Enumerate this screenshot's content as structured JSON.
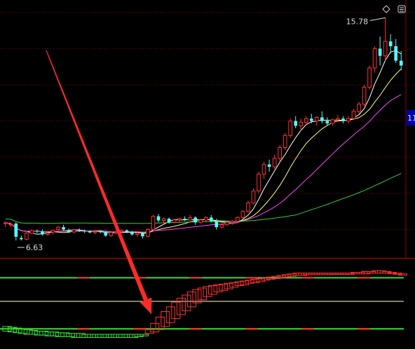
{
  "colors": {
    "background": "#000000",
    "grid": "#8a0000",
    "up": "#ff3030",
    "down": "#54fcfc",
    "ma5": "#ffffff",
    "ma10": "#ffff66",
    "ma20": "#ff40ff",
    "ma60": "#33cc33",
    "arrow": "#ff2a2a",
    "ind_red": "#ff3030",
    "ind_green": "#33dd33",
    "ind_level": "#ffffcc"
  },
  "icons": {
    "corner_buttons": [
      "diamond-icon",
      "square-icon"
    ]
  },
  "chart_data": [
    {
      "type": "candlestick",
      "title": "",
      "annotations": {
        "high_label": "15.78",
        "low_label": "6.63",
        "axis_edge_label": "11"
      },
      "high_value": 15.78,
      "low_value": 6.63,
      "ylim": [
        6.0,
        16.4
      ],
      "grid_levels": [
        7.0,
        8.5,
        10.0,
        11.5,
        13.0,
        14.5,
        16.0
      ],
      "candles": [
        [
          7.25,
          7.35,
          7.1,
          7.28
        ],
        [
          7.2,
          7.3,
          7.1,
          7.22
        ],
        [
          7.25,
          7.3,
          6.55,
          6.7
        ],
        [
          6.65,
          6.75,
          6.55,
          6.6
        ],
        [
          6.6,
          6.9,
          6.55,
          6.85
        ],
        [
          6.85,
          7.0,
          6.8,
          6.95
        ],
        [
          6.95,
          7.0,
          6.85,
          6.92
        ],
        [
          6.92,
          7.0,
          6.75,
          6.8
        ],
        [
          6.8,
          6.9,
          6.75,
          6.85
        ],
        [
          6.9,
          7.0,
          6.8,
          6.97
        ],
        [
          7.0,
          7.15,
          6.95,
          7.1
        ],
        [
          7.1,
          7.2,
          6.95,
          7.0
        ],
        [
          6.95,
          7.05,
          6.85,
          6.9
        ],
        [
          6.9,
          7.0,
          6.85,
          6.98
        ],
        [
          6.98,
          7.05,
          6.9,
          6.95
        ],
        [
          6.95,
          7.0,
          6.85,
          6.93
        ],
        [
          6.93,
          6.97,
          6.85,
          6.88
        ],
        [
          6.88,
          6.95,
          6.8,
          6.92
        ],
        [
          6.92,
          6.98,
          6.85,
          6.9
        ],
        [
          6.9,
          6.95,
          6.7,
          6.75
        ],
        [
          6.75,
          6.9,
          6.7,
          6.88
        ],
        [
          6.88,
          6.95,
          6.8,
          6.92
        ],
        [
          6.92,
          7.0,
          6.85,
          6.97
        ],
        [
          6.97,
          7.0,
          6.85,
          6.9
        ],
        [
          6.9,
          6.95,
          6.75,
          6.8
        ],
        [
          6.8,
          6.9,
          6.7,
          6.85
        ],
        [
          6.85,
          6.9,
          6.63,
          6.72
        ],
        [
          6.72,
          7.05,
          6.68,
          7.0
        ],
        [
          7.0,
          7.6,
          6.95,
          7.55
        ],
        [
          7.55,
          7.65,
          7.3,
          7.38
        ],
        [
          7.38,
          7.5,
          7.2,
          7.45
        ],
        [
          7.45,
          7.5,
          7.25,
          7.3
        ],
        [
          7.3,
          7.45,
          7.25,
          7.4
        ],
        [
          7.4,
          7.5,
          7.3,
          7.45
        ],
        [
          7.45,
          7.55,
          7.35,
          7.4
        ],
        [
          7.4,
          7.6,
          7.35,
          7.5
        ],
        [
          7.5,
          7.55,
          7.2,
          7.3
        ],
        [
          7.3,
          7.45,
          7.25,
          7.4
        ],
        [
          7.4,
          7.55,
          7.3,
          7.5
        ],
        [
          7.5,
          7.6,
          7.3,
          7.35
        ],
        [
          7.35,
          7.45,
          7.0,
          7.1
        ],
        [
          7.1,
          7.25,
          7.05,
          7.2
        ],
        [
          7.2,
          7.35,
          7.15,
          7.3
        ],
        [
          7.3,
          7.4,
          7.2,
          7.35
        ],
        [
          7.35,
          7.55,
          7.3,
          7.5
        ],
        [
          7.5,
          7.8,
          7.45,
          7.75
        ],
        [
          7.75,
          8.2,
          7.7,
          8.1
        ],
        [
          8.1,
          8.7,
          8.05,
          8.6
        ],
        [
          8.6,
          9.4,
          8.5,
          9.3
        ],
        [
          9.3,
          9.8,
          9.1,
          9.7
        ],
        [
          9.7,
          9.9,
          9.4,
          9.6
        ],
        [
          9.6,
          10.1,
          9.5,
          9.95
        ],
        [
          9.95,
          10.5,
          9.8,
          10.4
        ],
        [
          10.4,
          11.0,
          10.3,
          10.9
        ],
        [
          10.9,
          11.6,
          10.8,
          11.5
        ],
        [
          11.5,
          11.7,
          11.2,
          11.3
        ],
        [
          11.3,
          11.6,
          11.1,
          11.45
        ],
        [
          11.45,
          11.7,
          11.35,
          11.6
        ],
        [
          11.6,
          11.8,
          11.4,
          11.5
        ],
        [
          11.5,
          11.7,
          11.3,
          11.65
        ],
        [
          11.65,
          11.9,
          11.4,
          11.5
        ],
        [
          11.5,
          11.65,
          11.3,
          11.4
        ],
        [
          11.4,
          11.6,
          11.3,
          11.55
        ],
        [
          11.55,
          11.75,
          11.45,
          11.6
        ],
        [
          11.6,
          11.7,
          11.4,
          11.5
        ],
        [
          11.5,
          11.7,
          11.4,
          11.6
        ],
        [
          11.6,
          12.0,
          11.55,
          11.9
        ],
        [
          11.9,
          12.3,
          11.8,
          12.2
        ],
        [
          12.2,
          13.0,
          12.1,
          12.9
        ],
        [
          12.9,
          13.8,
          12.8,
          13.7
        ],
        [
          13.7,
          14.6,
          13.5,
          14.5
        ],
        [
          14.5,
          15.0,
          13.8,
          14.2
        ],
        [
          14.2,
          15.78,
          14.0,
          14.8
        ],
        [
          14.8,
          15.1,
          14.3,
          14.6
        ],
        [
          14.6,
          14.9,
          13.9,
          14.0
        ],
        [
          14.0,
          14.4,
          13.6,
          13.8
        ]
      ]
    },
    {
      "type": "indicator",
      "title": "",
      "ylim": [
        0,
        100
      ],
      "level_lines": [
        80,
        50,
        15
      ],
      "main_values": [
        12,
        11,
        10,
        9,
        8,
        8,
        7,
        7,
        6,
        6,
        5,
        5,
        5,
        4,
        4,
        4,
        4,
        4,
        4,
        4,
        4,
        4,
        4,
        4,
        4,
        5,
        6,
        14,
        22,
        30,
        37,
        43,
        49,
        54,
        58,
        62,
        65,
        67,
        69,
        70,
        71,
        72,
        73,
        74,
        75,
        76,
        77,
        78,
        79,
        80,
        81,
        82,
        83,
        84,
        85,
        86,
        86,
        86,
        86,
        86,
        86,
        86,
        86,
        86,
        86,
        86,
        87,
        87,
        88,
        88,
        89,
        89,
        88,
        87,
        86,
        85
      ],
      "signal_values": [
        18,
        17,
        16,
        15,
        14,
        13,
        12,
        12,
        11,
        11,
        10,
        10,
        9,
        9,
        9,
        8,
        8,
        8,
        8,
        8,
        8,
        8,
        8,
        8,
        8,
        8,
        8,
        9,
        11,
        14,
        18,
        23,
        28,
        33,
        38,
        43,
        48,
        52,
        56,
        59,
        62,
        64,
        66,
        68,
        70,
        71,
        73,
        74,
        75,
        77,
        78,
        79,
        80,
        81,
        82,
        83,
        83,
        84,
        84,
        84,
        84,
        84,
        85,
        85,
        85,
        85,
        85,
        85,
        85,
        86,
        86,
        86,
        86,
        86,
        85,
        85
      ]
    }
  ]
}
